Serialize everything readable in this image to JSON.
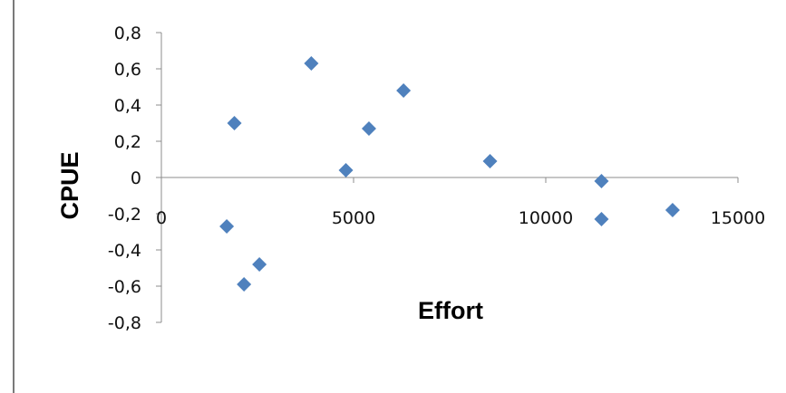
{
  "chart_data": {
    "type": "scatter",
    "xlabel": "Effort",
    "ylabel": "CPUE",
    "xlim": [
      0,
      15000
    ],
    "ylim": [
      -0.8,
      0.8
    ],
    "x_ticks": [
      0,
      5000,
      10000,
      15000
    ],
    "x_tick_labels": [
      "0",
      "5000",
      "10000",
      "15000"
    ],
    "y_ticks": [
      0.8,
      0.6,
      0.4,
      0.2,
      0,
      -0.2,
      -0.4,
      -0.6,
      -0.8
    ],
    "y_tick_labels": [
      "0,8",
      "0,6",
      "0,4",
      "0,2",
      "0",
      "-0,2",
      "-0,4",
      "-0,6",
      "-0,8"
    ],
    "marker_color": "#4f81bd",
    "marker_shape": "diamond",
    "grid": false,
    "points": [
      {
        "x": 1700,
        "y": -0.27
      },
      {
        "x": 1900,
        "y": 0.3
      },
      {
        "x": 2150,
        "y": -0.59
      },
      {
        "x": 2550,
        "y": -0.48
      },
      {
        "x": 3900,
        "y": 0.63
      },
      {
        "x": 4800,
        "y": 0.04
      },
      {
        "x": 5400,
        "y": 0.27
      },
      {
        "x": 6300,
        "y": 0.48
      },
      {
        "x": 8550,
        "y": 0.09
      },
      {
        "x": 11450,
        "y": -0.02
      },
      {
        "x": 11450,
        "y": -0.23
      },
      {
        "x": 13300,
        "y": -0.18
      }
    ]
  }
}
